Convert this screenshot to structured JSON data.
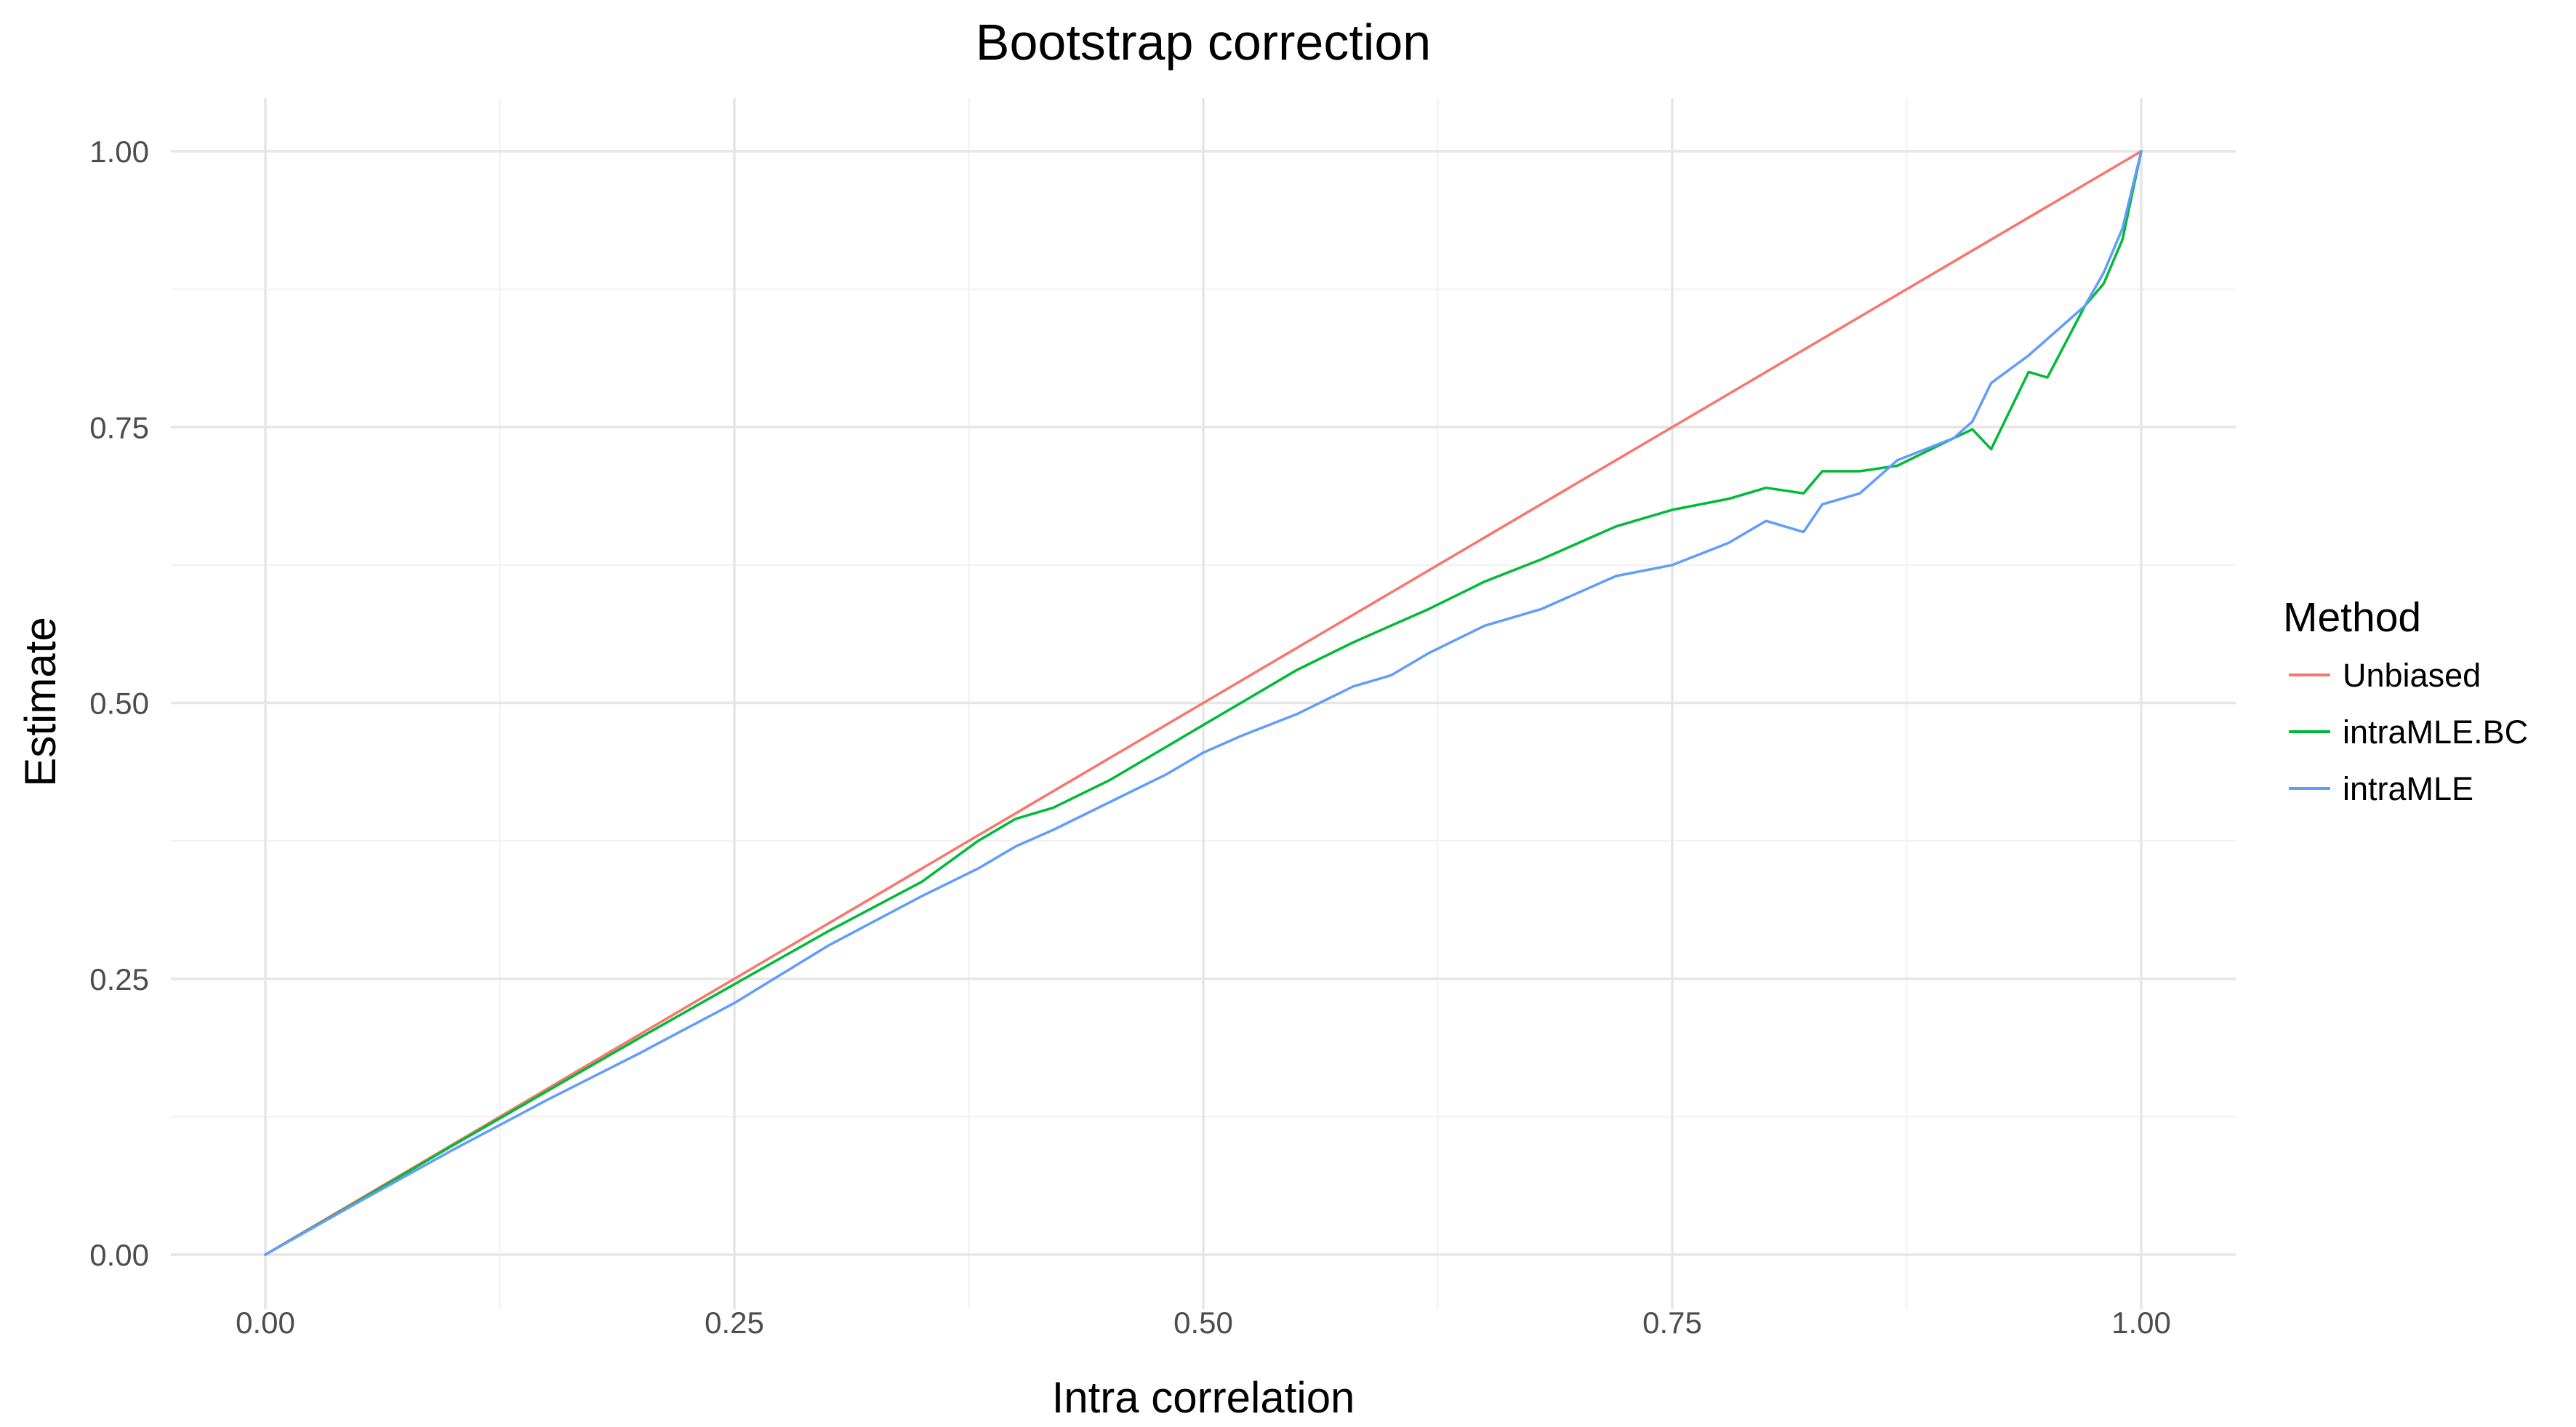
{
  "chart_data": {
    "type": "line",
    "title": "Bootstrap correction",
    "xlabel": "Intra correlation",
    "ylabel": "Estimate",
    "xlim": [
      0,
      1
    ],
    "ylim": [
      0,
      1
    ],
    "x_ticks": [
      "0.00",
      "0.25",
      "0.50",
      "0.75",
      "1.00"
    ],
    "y_ticks": [
      "0.00",
      "0.25",
      "0.50",
      "0.75",
      "1.00"
    ],
    "grid": true,
    "legend_title": "Method",
    "legend_position": "right",
    "series": [
      {
        "name": "Unbiased",
        "color": "#F8766D",
        "x": [
          0,
          1
        ],
        "y": [
          0,
          1
        ]
      },
      {
        "name": "intraMLE.BC",
        "color": "#00BA38",
        "x": [
          0,
          0.05,
          0.1,
          0.15,
          0.2,
          0.25,
          0.3,
          0.35,
          0.38,
          0.4,
          0.42,
          0.45,
          0.48,
          0.5,
          0.52,
          0.55,
          0.58,
          0.6,
          0.62,
          0.65,
          0.68,
          0.7,
          0.72,
          0.75,
          0.78,
          0.8,
          0.82,
          0.83,
          0.85,
          0.87,
          0.9,
          0.91,
          0.92,
          0.94,
          0.95,
          0.97,
          0.98,
          0.99,
          1.0
        ],
        "y": [
          0,
          0.049,
          0.099,
          0.148,
          0.197,
          0.245,
          0.293,
          0.338,
          0.375,
          0.395,
          0.405,
          0.43,
          0.46,
          0.48,
          0.5,
          0.53,
          0.555,
          0.57,
          0.585,
          0.61,
          0.63,
          0.645,
          0.66,
          0.675,
          0.685,
          0.695,
          0.69,
          0.71,
          0.71,
          0.715,
          0.74,
          0.748,
          0.73,
          0.8,
          0.795,
          0.86,
          0.88,
          0.92,
          1.0
        ]
      },
      {
        "name": "intraMLE",
        "color": "#619CFF",
        "x": [
          0,
          0.05,
          0.1,
          0.15,
          0.2,
          0.25,
          0.3,
          0.35,
          0.38,
          0.4,
          0.42,
          0.45,
          0.48,
          0.5,
          0.52,
          0.55,
          0.58,
          0.6,
          0.62,
          0.65,
          0.68,
          0.7,
          0.72,
          0.75,
          0.78,
          0.8,
          0.82,
          0.83,
          0.85,
          0.87,
          0.9,
          0.91,
          0.92,
          0.94,
          0.95,
          0.97,
          0.98,
          0.99,
          1.0
        ],
        "y": [
          0,
          0.048,
          0.095,
          0.14,
          0.183,
          0.228,
          0.28,
          0.325,
          0.35,
          0.37,
          0.385,
          0.41,
          0.435,
          0.455,
          0.47,
          0.49,
          0.515,
          0.525,
          0.545,
          0.57,
          0.585,
          0.6,
          0.615,
          0.625,
          0.645,
          0.665,
          0.655,
          0.68,
          0.69,
          0.72,
          0.74,
          0.755,
          0.79,
          0.815,
          0.83,
          0.86,
          0.89,
          0.93,
          1.0
        ]
      }
    ]
  }
}
